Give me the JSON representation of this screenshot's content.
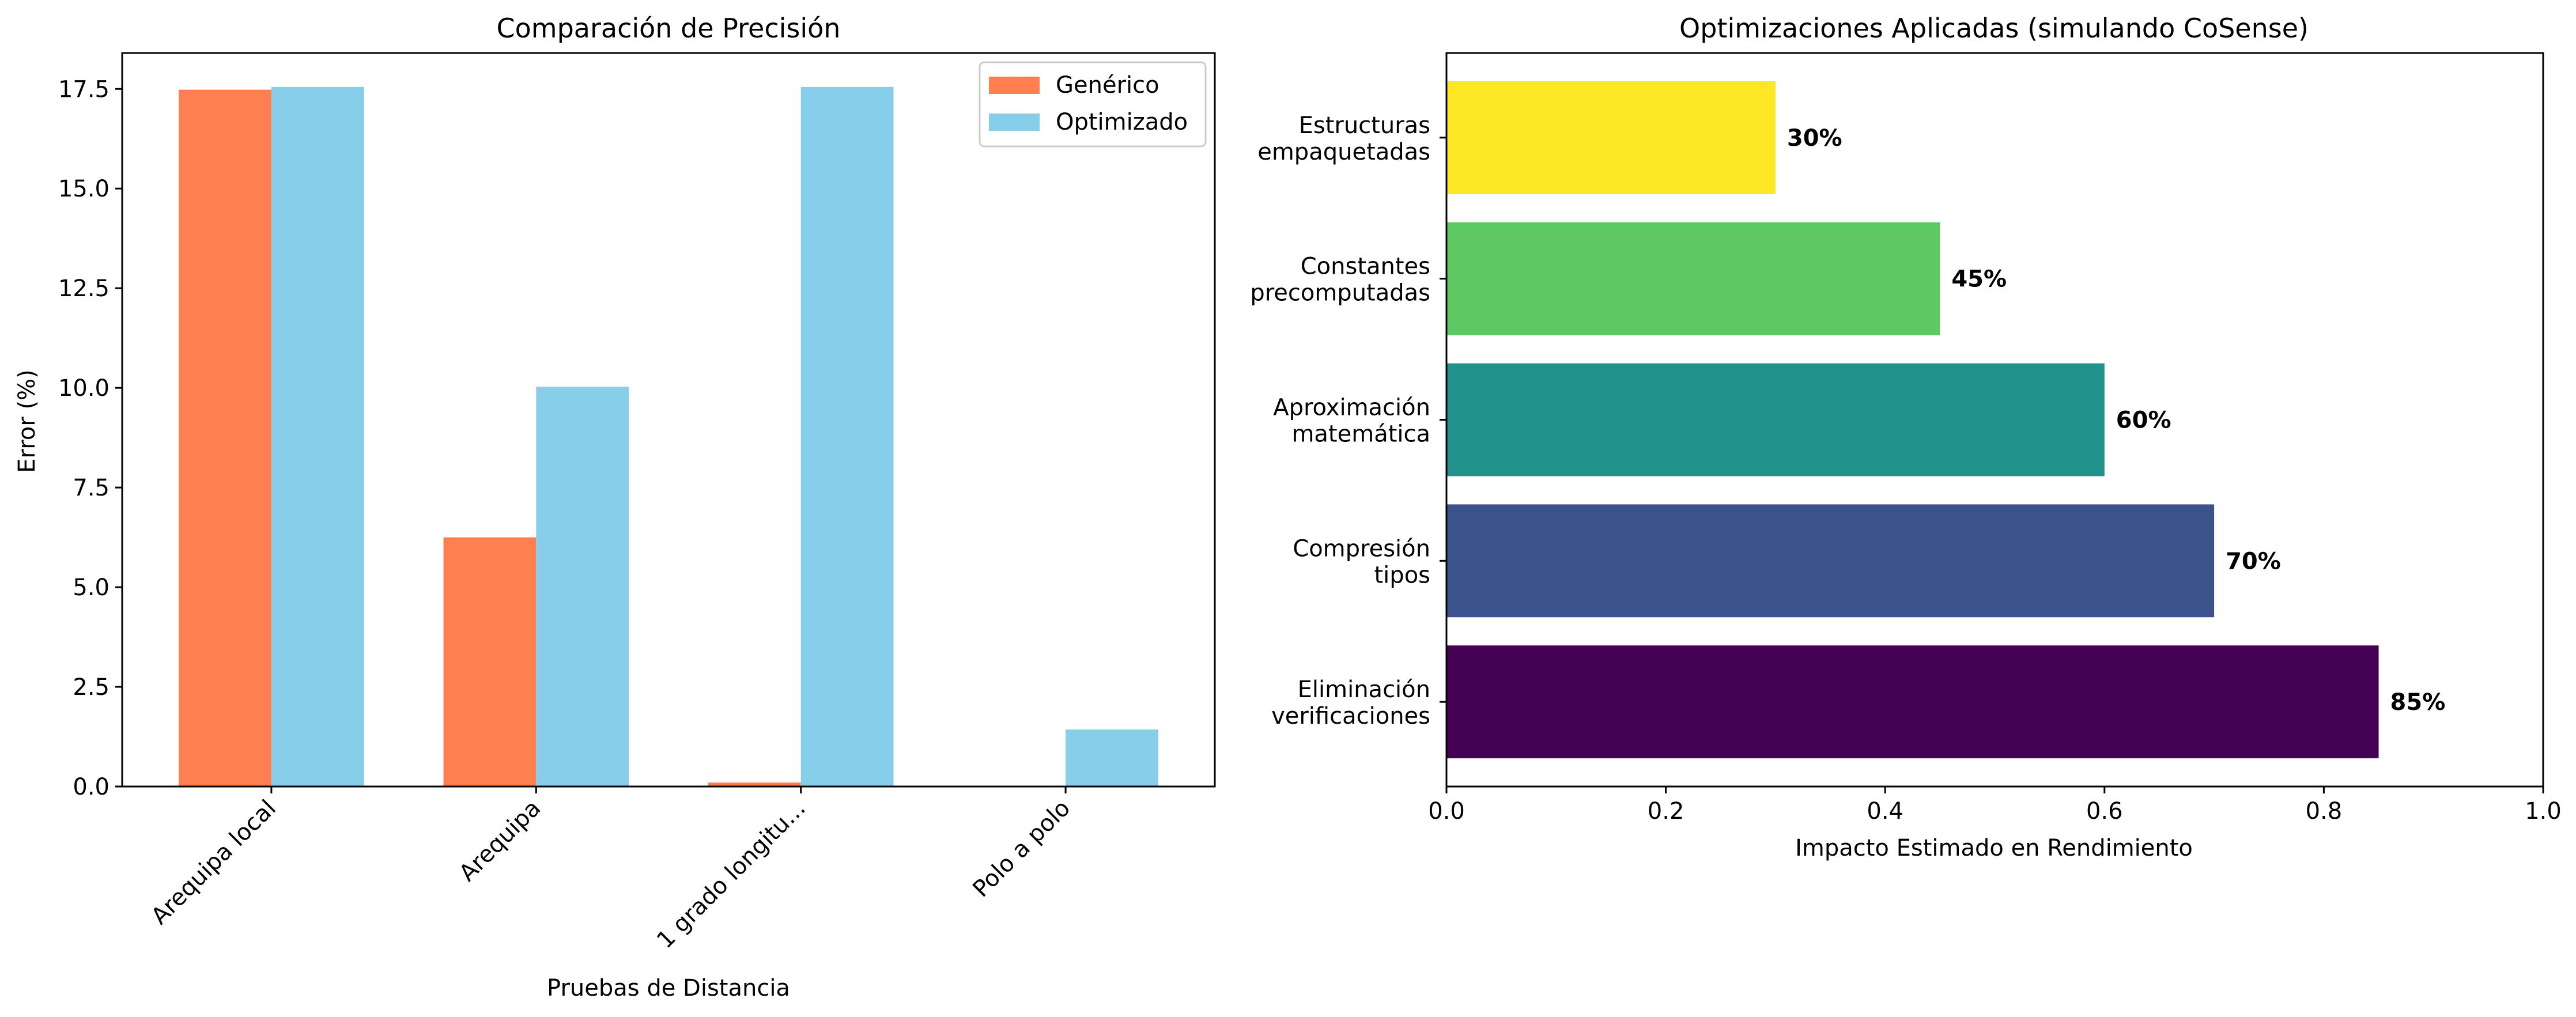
{
  "chart_data": [
    {
      "type": "bar",
      "title": "Comparación de Precisión",
      "xlabel": "Pruebas de Distancia",
      "ylabel": "Error (%)",
      "categories": [
        "Arequipa local",
        "Arequipa",
        "1 grado longitu...",
        "Polo a polo"
      ],
      "series": [
        {
          "name": "Genérico",
          "color": "#FF7F50",
          "values": [
            17.48,
            6.25,
            0.1,
            0.0
          ]
        },
        {
          "name": "Optimizado",
          "color": "#87CEEB",
          "values": [
            17.55,
            10.03,
            17.55,
            1.43
          ]
        }
      ],
      "ylim": [
        0,
        18.4
      ],
      "yticks": [
        "0.0",
        "2.5",
        "5.0",
        "7.5",
        "10.0",
        "12.5",
        "15.0",
        "17.5"
      ],
      "legend": "top-right",
      "grid": false
    },
    {
      "type": "bar",
      "orientation": "horizontal",
      "title": "Optimizaciones Aplicadas (simulando CoSense)",
      "xlabel": "Impacto Estimado en Rendimiento",
      "ylabel": "",
      "categories": [
        [
          "Eliminación",
          "verificaciones"
        ],
        [
          "Compresión",
          "tipos"
        ],
        [
          "Aproximación",
          "matemática"
        ],
        [
          "Constantes",
          "precomputadas"
        ],
        [
          "Estructuras",
          "empaquetadas"
        ]
      ],
      "values": [
        0.85,
        0.7,
        0.6,
        0.45,
        0.3
      ],
      "value_labels": [
        "85%",
        "70%",
        "60%",
        "45%",
        "30%"
      ],
      "colors": [
        "#440154",
        "#3B528B",
        "#21918C",
        "#5EC962",
        "#FDE725"
      ],
      "xlim": [
        0,
        1.0
      ],
      "xticks": [
        "0.0",
        "0.2",
        "0.4",
        "0.6",
        "0.8",
        "1.0"
      ],
      "grid": false
    }
  ]
}
